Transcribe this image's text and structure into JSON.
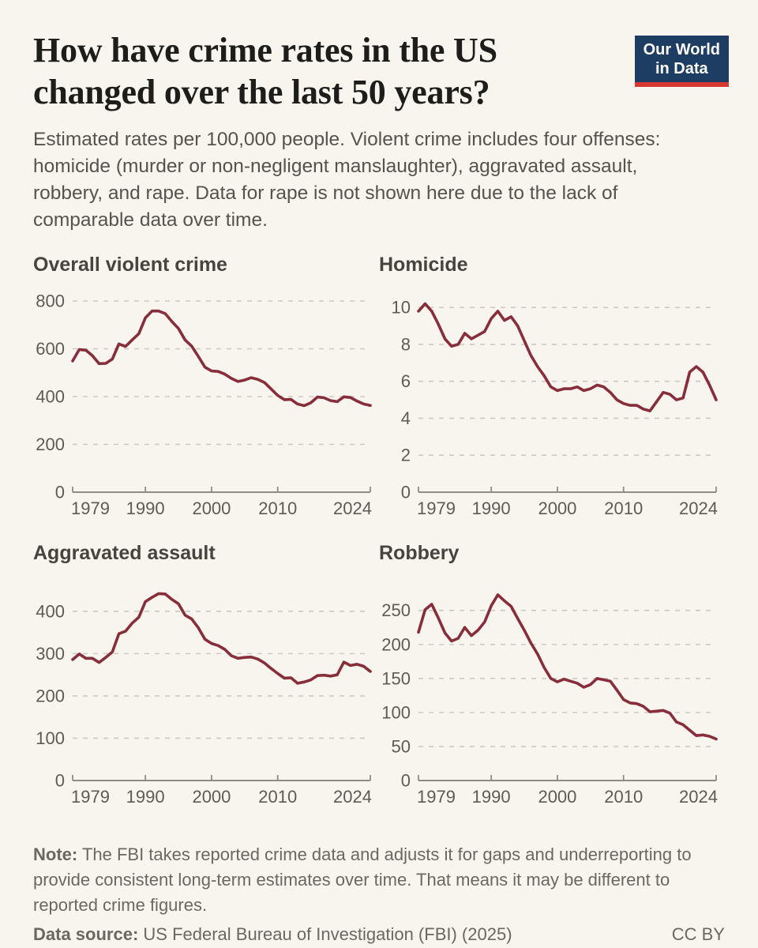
{
  "page": {
    "background": "#f8f5ee"
  },
  "header": {
    "title": "How have crime rates in the US changed over the last 50 years?",
    "subtitle": "Estimated rates per 100,000 people. Violent crime includes four offenses: homicide (murder or non-negligent manslaughter), aggravated assault, robbery, and rape. Data for rape is not shown here due to the lack of comparable data over time.",
    "logo": {
      "line1": "Our World",
      "line2": "in Data",
      "bg_color": "#1d3d63",
      "bar_color": "#d7382f"
    }
  },
  "footer": {
    "note_label": "Note:",
    "note_text": "The FBI takes reported crime data and adjusts it for gaps and underreporting to provide consistent long-term estimates over time. That means it may be different to reported crime figures.",
    "source_label": "Data source:",
    "source_text": "US Federal Bureau of Investigation (FBI) (2025)",
    "license": "CC BY"
  },
  "chart_data": {
    "type": "line",
    "unit": "rate per 100,000 people",
    "line_color": "#882d3a",
    "grid_color": "#cdc9c2",
    "axis_color": "#8f8b85",
    "grid": true,
    "legend_position": "none",
    "x": [
      1979,
      1980,
      1981,
      1982,
      1983,
      1984,
      1985,
      1986,
      1987,
      1988,
      1989,
      1990,
      1991,
      1992,
      1993,
      1994,
      1995,
      1996,
      1997,
      1998,
      1999,
      2000,
      2001,
      2002,
      2003,
      2004,
      2005,
      2006,
      2007,
      2008,
      2009,
      2010,
      2011,
      2012,
      2013,
      2014,
      2015,
      2016,
      2017,
      2018,
      2019,
      2020,
      2021,
      2022,
      2023,
      2024
    ],
    "xticks": [
      1979,
      1990,
      2000,
      2010,
      2024
    ],
    "xlabel": "",
    "ylabel": "",
    "panels": [
      {
        "title": "Overall violent crime",
        "ylim": [
          0,
          800
        ],
        "yticks": [
          0,
          200,
          400,
          600,
          800
        ],
        "values": [
          549,
          597,
          594,
          571,
          538,
          539,
          557,
          620,
          610,
          637,
          663,
          730,
          758,
          758,
          747,
          714,
          685,
          637,
          611,
          568,
          523,
          507,
          505,
          494,
          476,
          463,
          469,
          479,
          472,
          459,
          432,
          405,
          387,
          388,
          369,
          362,
          374,
          398,
          395,
          383,
          379,
          399,
          396,
          381,
          369,
          363
        ]
      },
      {
        "title": "Homicide",
        "ylim": [
          0,
          10.35
        ],
        "yticks": [
          0,
          2,
          4,
          6,
          8,
          10
        ],
        "values": [
          9.8,
          10.2,
          9.8,
          9.1,
          8.3,
          7.9,
          8.0,
          8.6,
          8.3,
          8.5,
          8.7,
          9.4,
          9.8,
          9.3,
          9.5,
          9.0,
          8.2,
          7.4,
          6.8,
          6.3,
          5.7,
          5.5,
          5.6,
          5.6,
          5.7,
          5.5,
          5.6,
          5.8,
          5.7,
          5.4,
          5.0,
          4.8,
          4.7,
          4.7,
          4.5,
          4.4,
          4.9,
          5.4,
          5.3,
          5.0,
          5.1,
          6.5,
          6.8,
          6.5,
          5.8,
          5.0
        ]
      },
      {
        "title": "Aggravated assault",
        "ylim": [
          0,
          452
        ],
        "yticks": [
          0,
          100,
          200,
          300,
          400
        ],
        "values": [
          286,
          299,
          289,
          289,
          279,
          291,
          304,
          347,
          353,
          372,
          386,
          423,
          433,
          442,
          441,
          428,
          418,
          391,
          382,
          361,
          334,
          324,
          319,
          310,
          295,
          289,
          291,
          292,
          287,
          278,
          265,
          253,
          242,
          243,
          230,
          233,
          238,
          248,
          249,
          247,
          250,
          280,
          272,
          275,
          270,
          258
        ]
      },
      {
        "title": "Robbery",
        "ylim": [
          0,
          281
        ],
        "yticks": [
          0,
          50,
          100,
          150,
          200,
          250
        ],
        "values": [
          218,
          251,
          259,
          239,
          217,
          205,
          209,
          225,
          213,
          221,
          233,
          257,
          273,
          264,
          256,
          238,
          221,
          202,
          186,
          166,
          150,
          145,
          149,
          146,
          143,
          137,
          141,
          150,
          148,
          146,
          133,
          119,
          114,
          113,
          109,
          101,
          102,
          103,
          99,
          86,
          82,
          74,
          66,
          67,
          65,
          61
        ]
      }
    ]
  }
}
